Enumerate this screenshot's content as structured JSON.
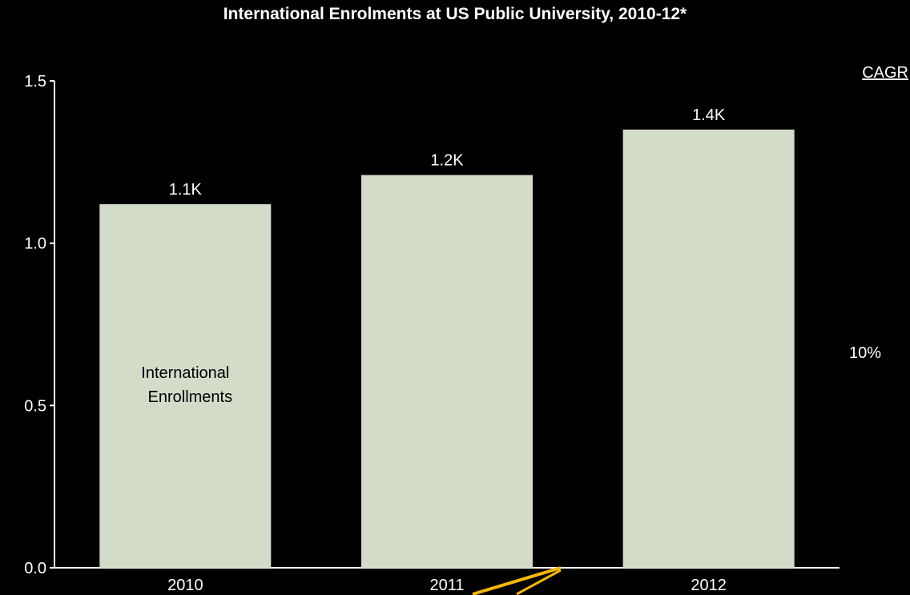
{
  "title": "International Enrolments at  US Public University, 2010-12*",
  "cagr": {
    "header": "CAGR",
    "value": "10%"
  },
  "colors": {
    "background": "#000000",
    "bar": "#d3dbc9",
    "axis": "#ffffff",
    "arrow": "#f5b800"
  },
  "chart_data": {
    "type": "bar",
    "categories": [
      "2010",
      "2011",
      "2012"
    ],
    "values": [
      1.12,
      1.21,
      1.35
    ],
    "data_labels": [
      "1.1K",
      "1.2K",
      "1.4K"
    ],
    "ylim": [
      0,
      1.5
    ],
    "yticks": [
      0.0,
      0.5,
      1.0,
      1.5
    ],
    "ytick_labels": [
      "0.0",
      "0.5",
      "1.0",
      "1.5"
    ],
    "series": [
      {
        "name": "International Enrollments",
        "values": [
          1.12,
          1.21,
          1.35
        ]
      }
    ],
    "bar_annotation": [
      "International",
      "Enrollments"
    ],
    "grid": false,
    "xlabel": "",
    "ylabel": ""
  }
}
